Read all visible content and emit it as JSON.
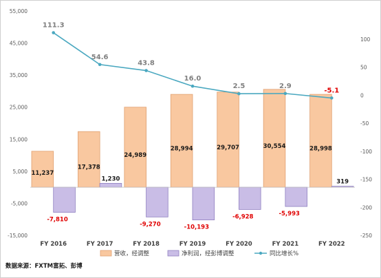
{
  "chart_data": {
    "type": "bar",
    "categories": [
      "FY 2016",
      "FY 2017",
      "FY 2018",
      "FY 2019",
      "FY 2020",
      "FY 2021",
      "FY 2022"
    ],
    "series": [
      {
        "name": "营收，经调整",
        "kind": "bar",
        "axis": "left",
        "color": "#f9c8a0",
        "values": [
          11237,
          17378,
          24989,
          28994,
          29707,
          30554,
          28998
        ],
        "labels": [
          "11,237",
          "17,378",
          "24,989",
          "28,994",
          "29,707",
          "30,554",
          "28,998"
        ]
      },
      {
        "name": "净利润，经彭博调整",
        "kind": "bar",
        "axis": "left",
        "color": "#c9bde6",
        "values": [
          -7810,
          1230,
          -9270,
          -10193,
          -6928,
          -5993,
          319
        ],
        "labels": [
          "-7,810",
          "1,230",
          "-9,270",
          "-10,193",
          "-6,928",
          "-5,993",
          "319"
        ]
      },
      {
        "name": "同比增长%",
        "kind": "line",
        "axis": "right",
        "color": "#4aa8c0",
        "values": [
          111.3,
          54.6,
          43.8,
          16.0,
          2.5,
          2.9,
          -5.1
        ],
        "labels": [
          "111.3",
          "54.6",
          "43.8",
          "16.0",
          "2.5",
          "2.9",
          "-5.1"
        ]
      }
    ],
    "y_left": {
      "min": -15000,
      "max": 55000,
      "ticks": [
        55000,
        45000,
        35000,
        25000,
        15000,
        5000,
        -5000,
        -15000
      ],
      "tick_labels": [
        "55,000",
        "45,000",
        "35,000",
        "25,000",
        "15,000",
        "5,000",
        "-5,000",
        "-15,000"
      ]
    },
    "y_right": {
      "min": -250,
      "max": 150,
      "ticks": [
        100,
        50,
        0,
        -50,
        -100,
        -150,
        -200,
        -250
      ],
      "tick_labels": [
        "100",
        "50",
        "0",
        "-50",
        "-100",
        "-150",
        "-200",
        "-250"
      ]
    },
    "grid": false,
    "legend_position": "bottom"
  },
  "source_note": "数据来源：FXTM富拓、彭博"
}
